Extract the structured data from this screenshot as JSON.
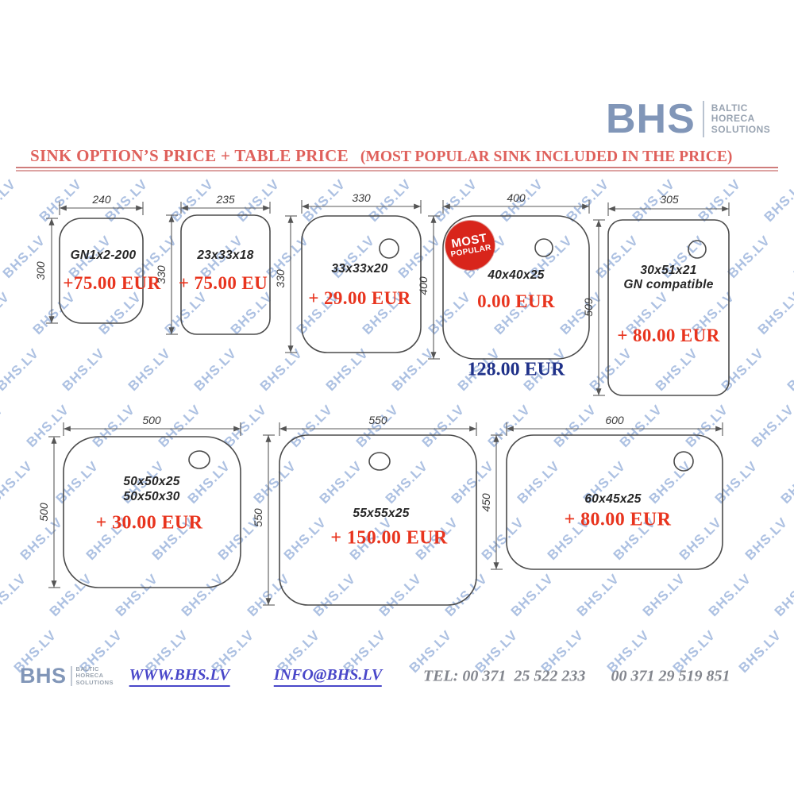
{
  "header": {
    "logo": {
      "text": "BHS",
      "tagline": [
        "BALTIC",
        "HORECA",
        "SOLUTIONS"
      ]
    },
    "title_main": "SINK OPTION’S PRICE + TABLE PRICE",
    "title_sub": "(MOST POPULAR SINK INCLUDED IN THE PRICE)"
  },
  "watermark": {
    "text": "BHS.LV"
  },
  "badge": {
    "line1": "MOST",
    "line2": "POPULAR"
  },
  "sinks": [
    {
      "width_label": "240",
      "height_label": "300",
      "name": "GN1x2-200",
      "price": "+75.00 EUR"
    },
    {
      "width_label": "235",
      "height_label": "330",
      "name": "23x33x18",
      "price": "+ 75.00 EU"
    },
    {
      "width_label": "330",
      "height_label": "330",
      "name": "33x33x20",
      "price": "+ 29.00 EUR"
    },
    {
      "width_label": "400",
      "height_label": "400",
      "name": "40x40x25",
      "price": "0.00 EUR",
      "total_price": "128.00 EUR"
    },
    {
      "width_label": "305",
      "height_label": "509",
      "name": "30x51x21",
      "name2": "GN compatible",
      "price": "+ 80.00 EUR"
    },
    {
      "width_label": "500",
      "height_label": "500",
      "name": "50x50x25",
      "name2": "50x50x30",
      "price": "+ 30.00 EUR"
    },
    {
      "width_label": "550",
      "height_label": "550",
      "name": "55x55x25",
      "price": "+ 150.00 EUR"
    },
    {
      "width_label": "600",
      "height_label": "450",
      "name": "60x45x25",
      "price": "+ 80.00 EUR"
    }
  ],
  "footer": {
    "logo": {
      "text": "BHS",
      "tagline": [
        "BALTIC",
        "HORECA",
        "SOLUTIONS"
      ]
    },
    "website": "WWW.BHS.LV",
    "email": "INFO@BHS.LV",
    "phone1": "TEL: 00 371  25 522 233",
    "phone2": "00 371 29 519 851"
  },
  "colors": {
    "title_red": "#df615c",
    "price_red": "#e8341e",
    "total_navy": "#1f3189",
    "badge_red": "#d8251b",
    "logo_blue": "#8196b8",
    "link_blue": "#4947c9",
    "watermark_blue": "#6a8ecb"
  }
}
